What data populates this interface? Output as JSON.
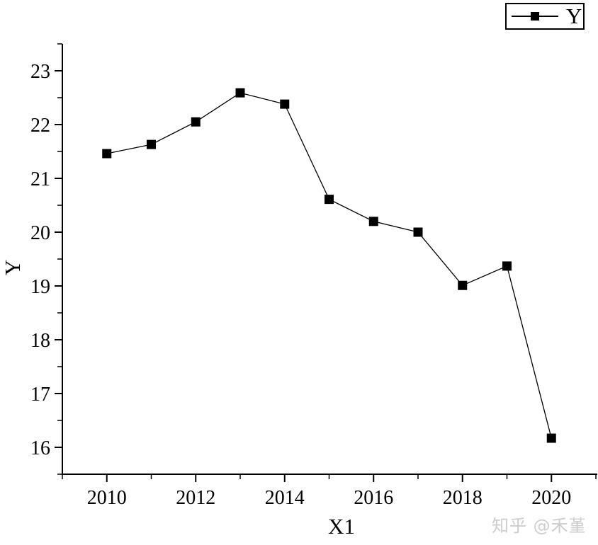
{
  "chart_data": {
    "type": "line",
    "title": "",
    "xlabel": "X1",
    "ylabel": "Y",
    "x": [
      2010,
      2011,
      2012,
      2013,
      2014,
      2015,
      2016,
      2017,
      2018,
      2019,
      2020
    ],
    "series": [
      {
        "name": "Y",
        "values": [
          21.46,
          21.63,
          22.05,
          22.59,
          22.38,
          20.61,
          20.2,
          20.0,
          19.01,
          19.37,
          16.17
        ]
      }
    ],
    "xlim": [
      2009,
      2021
    ],
    "ylim": [
      15.5,
      23.5
    ],
    "x_ticks": {
      "major": [
        2010,
        2012,
        2014,
        2016,
        2018,
        2020
      ],
      "major_labels": [
        "2010",
        "2012",
        "2014",
        "2016",
        "2018",
        "2020"
      ],
      "minor": [
        2009,
        2011,
        2013,
        2015,
        2017,
        2019,
        2021
      ]
    },
    "y_ticks": {
      "major": [
        16,
        17,
        18,
        19,
        20,
        21,
        22,
        23
      ],
      "major_labels": [
        "16",
        "17",
        "18",
        "19",
        "20",
        "21",
        "22",
        "23"
      ],
      "minor": [
        15.5,
        16.5,
        17.5,
        18.5,
        19.5,
        20.5,
        21.5,
        22.5,
        23.5
      ]
    },
    "grid": false,
    "legend": {
      "label": "Y",
      "position": "top-right-outside"
    },
    "marker": "filled-square",
    "colors": {
      "line": "#000000",
      "marker": "#000000",
      "axis": "#000000"
    }
  },
  "watermark": {
    "text": "知乎 @禾堇",
    "color": "#cdcdcd"
  }
}
